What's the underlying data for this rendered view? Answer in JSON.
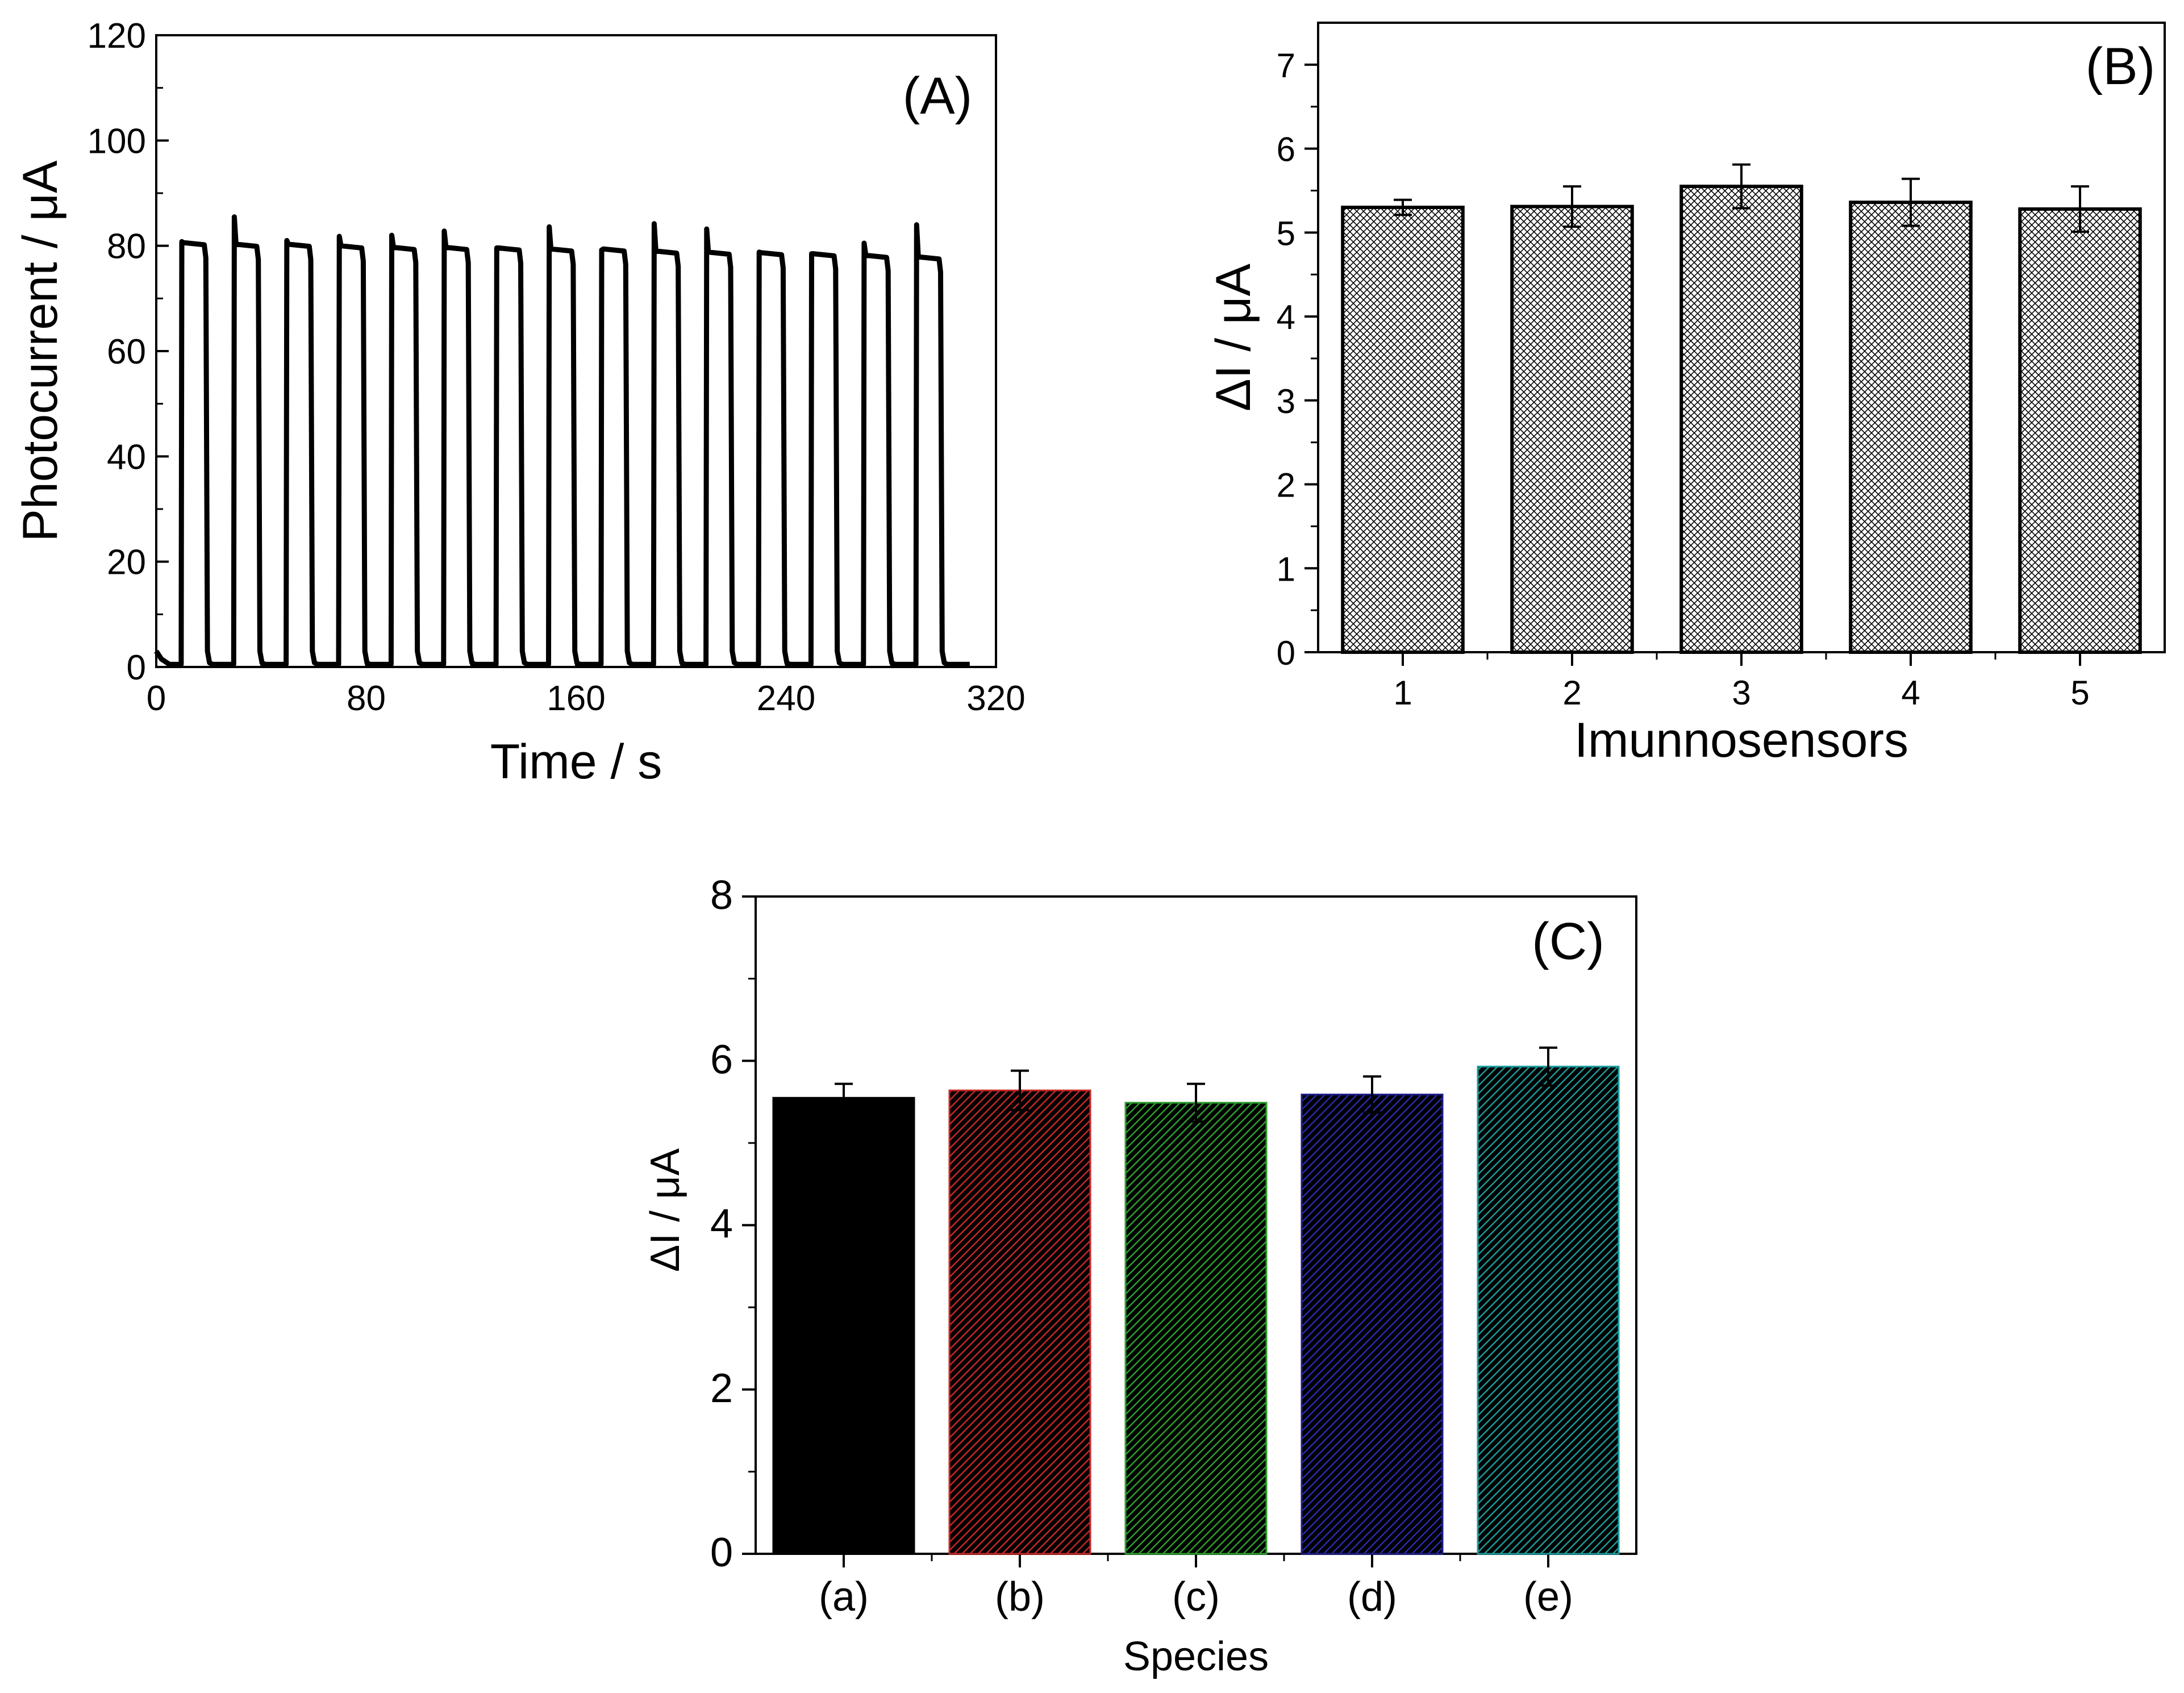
{
  "chart_data": [
    {
      "id": "A",
      "type": "line",
      "panel_label": "(A)",
      "xlabel": "Time / s",
      "ylabel": "Photocurrent / μA",
      "xlim": [
        0,
        320
      ],
      "ylim": [
        0,
        120
      ],
      "x_ticks": [
        "0",
        "80",
        "160",
        "240",
        "320"
      ],
      "y_ticks": [
        "0",
        "20",
        "40",
        "60",
        "80",
        "100",
        "120"
      ],
      "series": [
        {
          "name": "photocurrent",
          "pulses": [
            {
              "on": 9.5,
              "off": 19.5,
              "peak": 80.8,
              "plateau": 80.2
            },
            {
              "on": 29.5,
              "off": 39.5,
              "peak": 85.5,
              "plateau": 79.9
            },
            {
              "on": 49.5,
              "off": 59.5,
              "peak": 81.0,
              "plateau": 79.9
            },
            {
              "on": 69.5,
              "off": 79.5,
              "peak": 81.8,
              "plateau": 79.6
            },
            {
              "on": 89.5,
              "off": 99.5,
              "peak": 82.0,
              "plateau": 79.3
            },
            {
              "on": 109.5,
              "off": 119.5,
              "peak": 82.8,
              "plateau": 79.3
            },
            {
              "on": 129.5,
              "off": 139.5,
              "peak": 79.6,
              "plateau": 79.2
            },
            {
              "on": 149.5,
              "off": 159.5,
              "peak": 83.6,
              "plateau": 79.0
            },
            {
              "on": 169.5,
              "off": 179.5,
              "peak": 79.2,
              "plateau": 79.0
            },
            {
              "on": 189.5,
              "off": 199.5,
              "peak": 84.2,
              "plateau": 78.6
            },
            {
              "on": 209.5,
              "off": 219.5,
              "peak": 83.2,
              "plateau": 78.4
            },
            {
              "on": 229.5,
              "off": 239.5,
              "peak": 78.8,
              "plateau": 78.3
            },
            {
              "on": 249.5,
              "off": 259.5,
              "peak": 78.5,
              "plateau": 78.1
            },
            {
              "on": 269.5,
              "off": 279.5,
              "peak": 80.5,
              "plateau": 77.8
            },
            {
              "on": 289.5,
              "off": 299.5,
              "peak": 84.0,
              "plateau": 77.5
            }
          ],
          "baseline": 0.5,
          "start_value": 3.0,
          "end_time": 310
        }
      ]
    },
    {
      "id": "B",
      "type": "bar",
      "panel_label": "(B)",
      "xlabel": "Imunnosensors",
      "ylabel": "ΔI / μA",
      "categories": [
        "1",
        "2",
        "3",
        "4",
        "5"
      ],
      "values": [
        5.3,
        5.31,
        5.55,
        5.36,
        5.28
      ],
      "errors": [
        0.09,
        0.24,
        0.26,
        0.28,
        0.27
      ],
      "ylim": [
        0,
        7.5
      ],
      "y_ticks": [
        "0",
        "1",
        "2",
        "3",
        "4",
        "5",
        "6",
        "7"
      ],
      "fill": "crosshatch",
      "colors": [
        "#000000"
      ]
    },
    {
      "id": "C",
      "type": "bar",
      "panel_label": "(C)",
      "xlabel": "Species",
      "ylabel": "ΔI / μA",
      "categories": [
        "(a)",
        "(b)",
        "(c)",
        "(d)",
        "(e)"
      ],
      "values": [
        5.55,
        5.64,
        5.49,
        5.59,
        5.93
      ],
      "errors": [
        0.17,
        0.24,
        0.23,
        0.22,
        0.23
      ],
      "ylim": [
        0,
        8
      ],
      "y_ticks": [
        "0",
        "2",
        "4",
        "6",
        "8"
      ],
      "fill": "diagonal-hatch",
      "colors": [
        "#000000",
        "#c62828",
        "#2e9e2e",
        "#1f1f8a",
        "#1e9a9a"
      ]
    }
  ]
}
